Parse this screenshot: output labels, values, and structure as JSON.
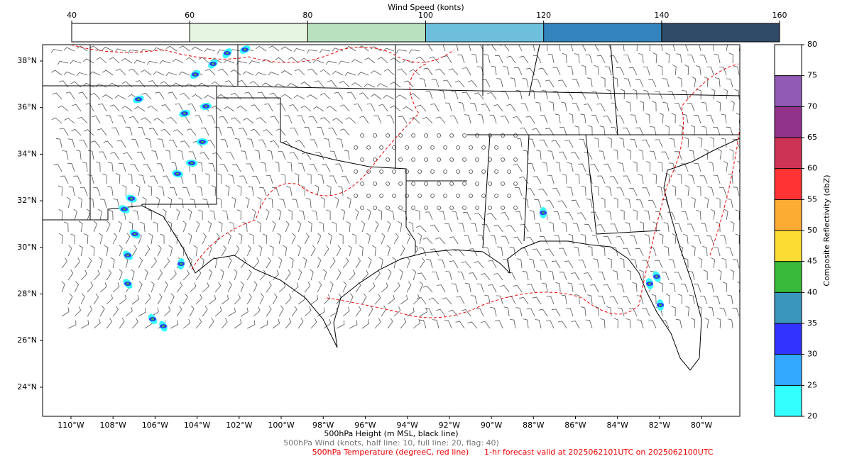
{
  "top_colorbar": {
    "title": "Wind Speed (konts)",
    "ticks": [
      40,
      60,
      80,
      100,
      120,
      140,
      160
    ],
    "colors": [
      "#ffffff",
      "#e5f5e0",
      "#b8e1c0",
      "#6dbfdb",
      "#3383bd",
      "#2f4a66"
    ]
  },
  "right_colorbar": {
    "label": "Composite Reflectivity (dbZ)",
    "ticks": [
      20,
      25,
      30,
      35,
      40,
      45,
      50,
      55,
      60,
      65,
      70,
      75,
      80
    ],
    "colors": [
      "#33ffff",
      "#33aaff",
      "#3333ff",
      "#3a96bd",
      "#3aba3a",
      "#fcdb33",
      "#fcab33",
      "#ff3333",
      "#cc3355",
      "#913388",
      "#915ab4",
      "#ffffff"
    ]
  },
  "map": {
    "xlim": [
      -111.35,
      -78.18
    ],
    "ylim": [
      22.75,
      38.7
    ],
    "lat_ticks": [
      {
        "value": 24,
        "label": "24°N"
      },
      {
        "value": 26,
        "label": "26°N"
      },
      {
        "value": 28,
        "label": "28°N"
      },
      {
        "value": 30,
        "label": "30°N"
      },
      {
        "value": 32,
        "label": "32°N"
      },
      {
        "value": 34,
        "label": "34°N"
      },
      {
        "value": 36,
        "label": "36°N"
      },
      {
        "value": 38,
        "label": "38°N"
      }
    ],
    "lon_ticks": [
      {
        "value": -110,
        "label": "110°W"
      },
      {
        "value": -108,
        "label": "108°W"
      },
      {
        "value": -106,
        "label": "106°W"
      },
      {
        "value": -104,
        "label": "104°W"
      },
      {
        "value": -102,
        "label": "102°W"
      },
      {
        "value": -100,
        "label": "100°W"
      },
      {
        "value": -98,
        "label": "98°W"
      },
      {
        "value": -96,
        "label": "96°W"
      },
      {
        "value": -94,
        "label": "94°W"
      },
      {
        "value": -92,
        "label": "92°W"
      },
      {
        "value": -90,
        "label": "90°W"
      },
      {
        "value": -88,
        "label": "88°W"
      },
      {
        "value": -86,
        "label": "86°W"
      },
      {
        "value": -84,
        "label": "84°W"
      },
      {
        "value": -82,
        "label": "82°W"
      },
      {
        "value": -80,
        "label": "80°W"
      }
    ]
  },
  "captions": {
    "height": "500hPa Height (m MSL, black line)",
    "wind": "500hPa Wind (knots, half line: 10, full line: 20, flag: 40)",
    "temperature": "500hPa Temperature (degreeC, red line)",
    "forecast": "1-hr forecast valid at 2025062101UTC on 2025062100UTC"
  }
}
